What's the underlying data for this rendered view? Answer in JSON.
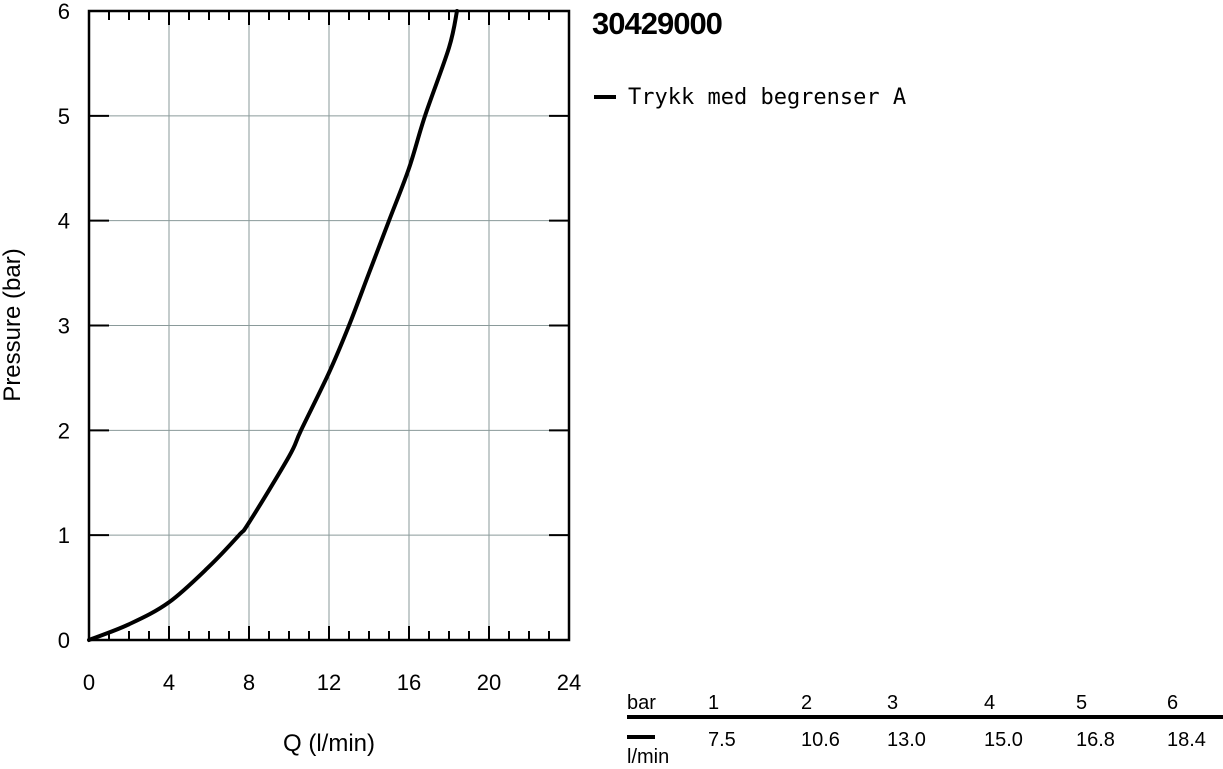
{
  "chart_data": {
    "type": "line",
    "title": "30429000",
    "xlabel": "Q (l/min)",
    "ylabel": "Pressure (bar)",
    "xlim": [
      0,
      24
    ],
    "ylim": [
      0,
      6
    ],
    "xticks": [
      "0",
      "4",
      "8",
      "12",
      "16",
      "20",
      "24"
    ],
    "yticks": [
      "0",
      "1",
      "2",
      "3",
      "4",
      "5",
      "6"
    ],
    "grid": true,
    "legend_position": "right",
    "series": [
      {
        "name": "Trykk med begrenser A",
        "color": "#000000",
        "x": [
          0,
          2,
          4,
          6,
          7.5,
          8,
          10,
          10.6,
          12,
          13.0,
          14,
          15.0,
          16,
          16.8,
          18,
          18.4
        ],
        "y": [
          0,
          0.15,
          0.36,
          0.7,
          1.0,
          1.12,
          1.75,
          2.0,
          2.55,
          3.0,
          3.5,
          4.0,
          4.5,
          5.0,
          5.65,
          6.0
        ]
      }
    ]
  },
  "flow_table": {
    "pressure_unit": "bar",
    "flow_unit": "l/min",
    "pressures": [
      "1",
      "2",
      "3",
      "4",
      "5",
      "6"
    ],
    "flows": [
      "7.5",
      "10.6",
      "13.0",
      "15.0",
      "16.8",
      "18.4"
    ]
  }
}
